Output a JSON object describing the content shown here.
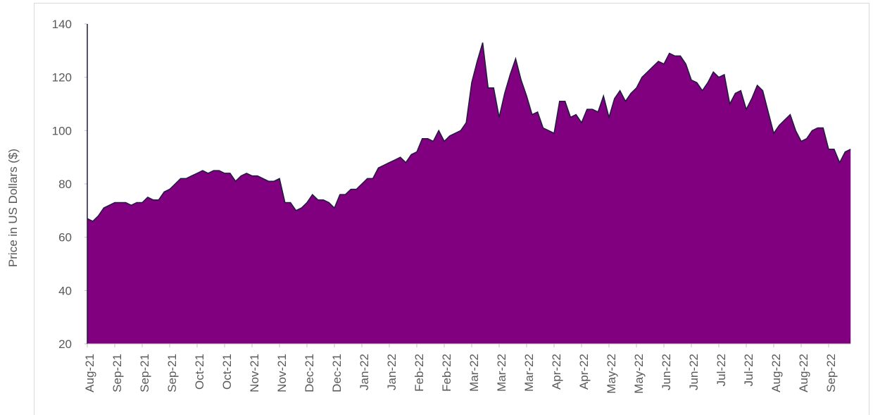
{
  "chart_data": {
    "type": "area",
    "y_label": "Price in US Dollars ($)",
    "categories": [
      "Aug-21",
      null,
      null,
      null,
      null,
      "Sep-21",
      null,
      null,
      null,
      null,
      "Sep-21",
      null,
      null,
      null,
      null,
      "Sep-21",
      null,
      null,
      null,
      null,
      "Oct-21",
      null,
      null,
      null,
      null,
      "Oct-21",
      null,
      null,
      null,
      null,
      "Nov-21",
      null,
      null,
      null,
      null,
      "Nov-21",
      null,
      null,
      null,
      null,
      "Dec-21",
      null,
      null,
      null,
      null,
      "Dec-21",
      null,
      null,
      null,
      null,
      "Jan-22",
      null,
      null,
      null,
      null,
      "Jan-22",
      null,
      null,
      null,
      null,
      "Feb-22",
      null,
      null,
      null,
      null,
      "Feb-22",
      null,
      null,
      null,
      null,
      "Mar-22",
      null,
      null,
      null,
      null,
      "Mar-22",
      null,
      null,
      null,
      null,
      "Mar-22",
      null,
      null,
      null,
      null,
      "Apr-22",
      null,
      null,
      null,
      null,
      "Apr-22",
      null,
      null,
      null,
      null,
      "May-22",
      null,
      null,
      null,
      null,
      "May-22",
      null,
      null,
      null,
      null,
      "Jun-22",
      null,
      null,
      null,
      null,
      "Jun-22",
      null,
      null,
      null,
      null,
      "Jul-22",
      null,
      null,
      null,
      null,
      "Jul-22",
      null,
      null,
      null,
      null,
      "Aug-22",
      null,
      null,
      null,
      null,
      "Aug-22",
      null,
      null,
      null,
      null,
      "Sep-22",
      null,
      null,
      null,
      null
    ],
    "values": [
      67,
      66,
      68,
      71,
      72,
      73,
      73,
      73,
      72,
      73,
      73,
      75,
      74,
      74,
      77,
      78,
      80,
      82,
      82,
      83,
      84,
      85,
      84,
      85,
      85,
      84,
      84,
      81,
      83,
      84,
      83,
      83,
      82,
      81,
      81,
      82,
      73,
      73,
      70,
      71,
      73,
      76,
      74,
      74,
      73,
      71,
      76,
      76,
      78,
      78,
      80,
      82,
      82,
      86,
      87,
      88,
      89,
      90,
      88,
      91,
      92,
      97,
      97,
      96,
      100,
      96,
      98,
      99,
      100,
      103,
      118,
      126,
      133,
      116,
      116,
      105,
      114,
      121,
      127,
      119,
      113,
      106,
      107,
      101,
      100,
      99,
      111,
      111,
      105,
      106,
      103,
      108,
      108,
      107,
      113,
      105,
      112,
      115,
      111,
      114,
      116,
      120,
      122,
      124,
      126,
      125,
      129,
      128,
      128,
      125,
      119,
      118,
      115,
      118,
      122,
      120,
      121,
      110,
      114,
      115,
      108,
      112,
      117,
      115,
      107,
      99,
      102,
      104,
      106,
      100,
      96,
      97,
      100,
      101,
      101,
      93,
      93,
      88,
      92,
      93
    ],
    "color": "#800080",
    "line_color": "#1c1c3c",
    "ylim": [
      20,
      140
    ],
    "yticks": [
      20,
      40,
      60,
      80,
      100,
      120,
      140
    ]
  }
}
